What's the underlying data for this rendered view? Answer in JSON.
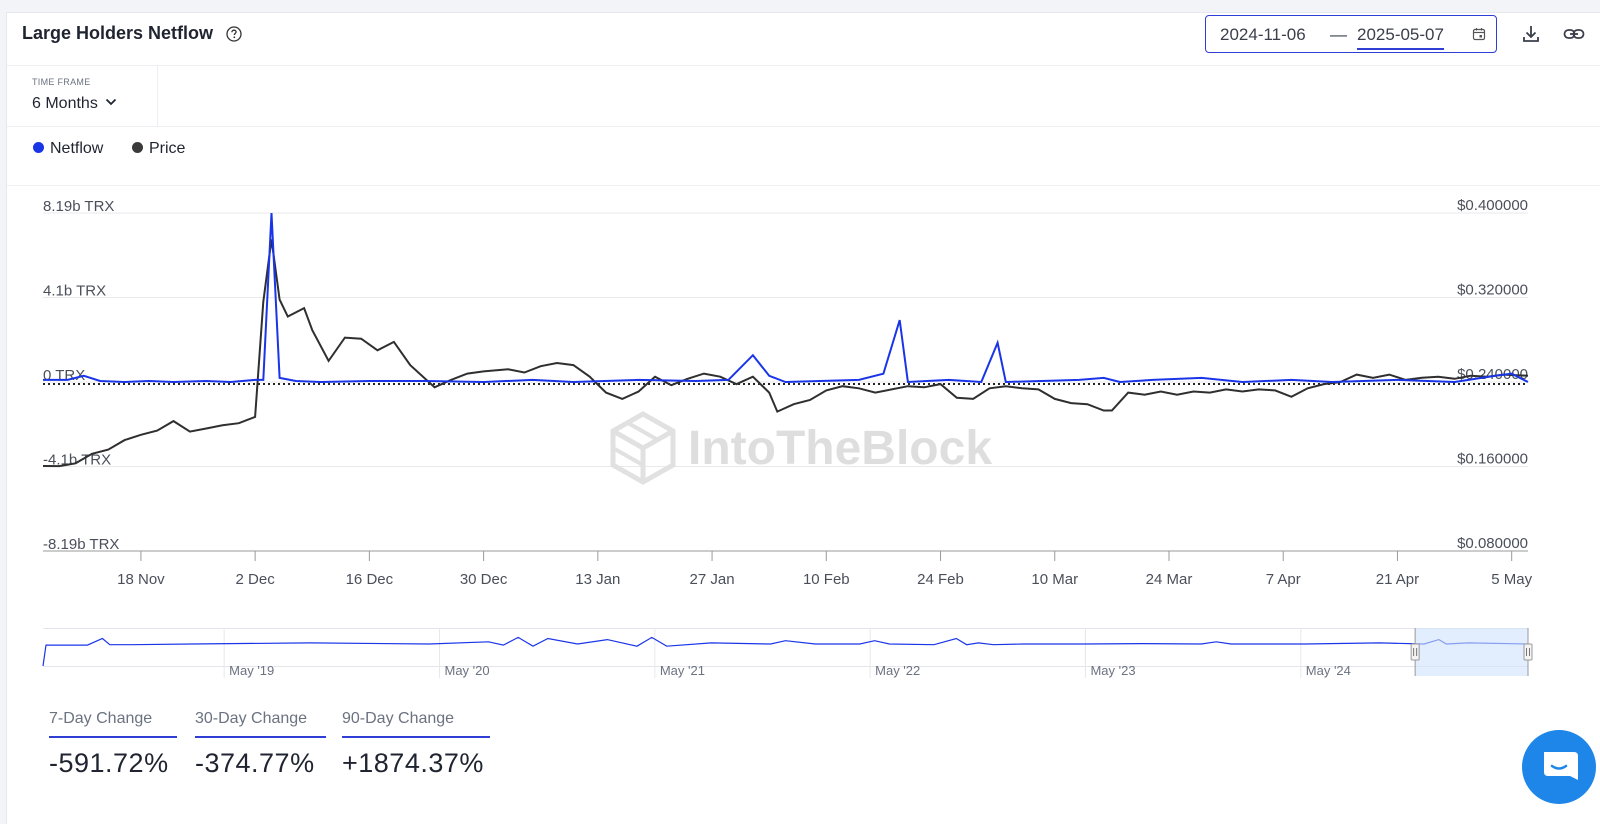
{
  "header": {
    "title": "Large Holders Netflow",
    "date_start": "2024-11-06",
    "date_separator": "—",
    "date_end": "2025-05-07"
  },
  "timeframe": {
    "label": "TIME FRAME",
    "value": "6 Months"
  },
  "legend": [
    {
      "label": "Netflow",
      "color": "#1a35e8"
    },
    {
      "label": "Price",
      "color": "#3a3a3a"
    }
  ],
  "watermark": "IntoTheBlock",
  "chart_data": {
    "type": "line",
    "title": "Large Holders Netflow",
    "x_dates": [
      "2024-11-06",
      "2025-05-07"
    ],
    "x_tick_labels": [
      "18 Nov",
      "2 Dec",
      "16 Dec",
      "30 Dec",
      "13 Jan",
      "27 Jan",
      "10 Feb",
      "24 Feb",
      "10 Mar",
      "24 Mar",
      "7 Apr",
      "21 Apr",
      "5 May"
    ],
    "y_left_tick_labels": [
      "8.19b TRX",
      "4.1b TRX",
      "0 TRX",
      "-4.1b TRX",
      "-8.19b TRX"
    ],
    "y_left_range": [
      -8.19,
      8.19
    ],
    "y_left_unit": "b TRX",
    "y_right_tick_labels": [
      "$0.400000",
      "$0.320000",
      "$0.240000",
      "$0.160000",
      "$0.080000"
    ],
    "y_right_range": [
      0.08,
      0.4
    ],
    "series": [
      {
        "name": "Netflow",
        "axis": "left",
        "points": [
          [
            "2024-11-06",
            0.1
          ],
          [
            "2024-11-09",
            0.1
          ],
          [
            "2024-11-11",
            0.3
          ],
          [
            "2024-11-13",
            0.05
          ],
          [
            "2024-11-16",
            0.0
          ],
          [
            "2024-11-19",
            0.05
          ],
          [
            "2024-11-22",
            0.0
          ],
          [
            "2024-11-26",
            0.05
          ],
          [
            "2024-11-29",
            0.0
          ],
          [
            "2024-12-02",
            0.1
          ],
          [
            "2024-12-03",
            0.1
          ],
          [
            "2024-12-04",
            8.19
          ],
          [
            "2024-12-05",
            0.2
          ],
          [
            "2024-12-07",
            0.05
          ],
          [
            "2024-12-10",
            0.0
          ],
          [
            "2024-12-16",
            0.05
          ],
          [
            "2024-12-23",
            0.05
          ],
          [
            "2024-12-30",
            0.0
          ],
          [
            "2025-01-05",
            0.1
          ],
          [
            "2025-01-10",
            0.0
          ],
          [
            "2025-01-18",
            0.1
          ],
          [
            "2025-01-25",
            0.05
          ],
          [
            "2025-01-29",
            0.1
          ],
          [
            "2025-02-01",
            1.3
          ],
          [
            "2025-02-03",
            0.3
          ],
          [
            "2025-02-05",
            0.0
          ],
          [
            "2025-02-14",
            0.1
          ],
          [
            "2025-02-17",
            0.4
          ],
          [
            "2025-02-19",
            3.0
          ],
          [
            "2025-02-20",
            0.0
          ],
          [
            "2025-02-25",
            0.1
          ],
          [
            "2025-03-01",
            0.0
          ],
          [
            "2025-03-03",
            1.9
          ],
          [
            "2025-03-04",
            0.0
          ],
          [
            "2025-03-13",
            0.1
          ],
          [
            "2025-03-16",
            0.2
          ],
          [
            "2025-03-18",
            0.0
          ],
          [
            "2025-03-22",
            0.1
          ],
          [
            "2025-03-28",
            0.2
          ],
          [
            "2025-04-02",
            0.0
          ],
          [
            "2025-04-08",
            0.1
          ],
          [
            "2025-04-13",
            0.0
          ],
          [
            "2025-04-21",
            0.1
          ],
          [
            "2025-04-28",
            0.0
          ],
          [
            "2025-05-03",
            0.3
          ],
          [
            "2025-05-05",
            0.4
          ],
          [
            "2025-05-07",
            0.0
          ]
        ]
      },
      {
        "name": "Price",
        "axis": "right",
        "points": [
          [
            "2024-11-06",
            0.1605
          ],
          [
            "2024-11-08",
            0.1604
          ],
          [
            "2024-11-10",
            0.163
          ],
          [
            "2024-11-12",
            0.172
          ],
          [
            "2024-11-14",
            0.176
          ],
          [
            "2024-11-16",
            0.185
          ],
          [
            "2024-11-18",
            0.19
          ],
          [
            "2024-11-20",
            0.194
          ],
          [
            "2024-11-22",
            0.203
          ],
          [
            "2024-11-24",
            0.193
          ],
          [
            "2024-11-26",
            0.196
          ],
          [
            "2024-11-28",
            0.199
          ],
          [
            "2024-11-30",
            0.201
          ],
          [
            "2024-12-02",
            0.207
          ],
          [
            "2024-12-03",
            0.316
          ],
          [
            "2024-12-04",
            0.375
          ],
          [
            "2024-12-05",
            0.318
          ],
          [
            "2024-12-06",
            0.302
          ],
          [
            "2024-12-08",
            0.31
          ],
          [
            "2024-12-09",
            0.289
          ],
          [
            "2024-12-11",
            0.26
          ],
          [
            "2024-12-13",
            0.282
          ],
          [
            "2024-12-15",
            0.281
          ],
          [
            "2024-12-17",
            0.27
          ],
          [
            "2024-12-19",
            0.278
          ],
          [
            "2024-12-21",
            0.256
          ],
          [
            "2024-12-24",
            0.235
          ],
          [
            "2024-12-26",
            0.242
          ],
          [
            "2024-12-28",
            0.248
          ],
          [
            "2024-12-30",
            0.25
          ],
          [
            "2025-01-02",
            0.252
          ],
          [
            "2025-01-04",
            0.249
          ],
          [
            "2025-01-06",
            0.255
          ],
          [
            "2025-01-08",
            0.258
          ],
          [
            "2025-01-10",
            0.256
          ],
          [
            "2025-01-12",
            0.245
          ],
          [
            "2025-01-14",
            0.23
          ],
          [
            "2025-01-16",
            0.224
          ],
          [
            "2025-01-18",
            0.231
          ],
          [
            "2025-01-20",
            0.245
          ],
          [
            "2025-01-22",
            0.237
          ],
          [
            "2025-01-24",
            0.243
          ],
          [
            "2025-01-26",
            0.248
          ],
          [
            "2025-01-28",
            0.245
          ],
          [
            "2025-01-30",
            0.238
          ],
          [
            "2025-02-01",
            0.245
          ],
          [
            "2025-02-03",
            0.23
          ],
          [
            "2025-02-04",
            0.212
          ],
          [
            "2025-02-06",
            0.219
          ],
          [
            "2025-02-08",
            0.223
          ],
          [
            "2025-02-10",
            0.232
          ],
          [
            "2025-02-12",
            0.236
          ],
          [
            "2025-02-14",
            0.234
          ],
          [
            "2025-02-16",
            0.23
          ],
          [
            "2025-02-18",
            0.233
          ],
          [
            "2025-02-20",
            0.236
          ],
          [
            "2025-02-22",
            0.235
          ],
          [
            "2025-02-24",
            0.238
          ],
          [
            "2025-02-26",
            0.225
          ],
          [
            "2025-02-28",
            0.224
          ],
          [
            "2025-03-02",
            0.234
          ],
          [
            "2025-03-04",
            0.236
          ],
          [
            "2025-03-06",
            0.234
          ],
          [
            "2025-03-08",
            0.233
          ],
          [
            "2025-03-10",
            0.224
          ],
          [
            "2025-03-12",
            0.22
          ],
          [
            "2025-03-14",
            0.219
          ],
          [
            "2025-03-16",
            0.213
          ],
          [
            "2025-03-17",
            0.213
          ],
          [
            "2025-03-19",
            0.23
          ],
          [
            "2025-03-21",
            0.228
          ],
          [
            "2025-03-23",
            0.231
          ],
          [
            "2025-03-25",
            0.228
          ],
          [
            "2025-03-27",
            0.231
          ],
          [
            "2025-03-29",
            0.23
          ],
          [
            "2025-03-31",
            0.233
          ],
          [
            "2025-04-02",
            0.231
          ],
          [
            "2025-04-04",
            0.233
          ],
          [
            "2025-04-06",
            0.232
          ],
          [
            "2025-04-08",
            0.226
          ],
          [
            "2025-04-10",
            0.234
          ],
          [
            "2025-04-12",
            0.238
          ],
          [
            "2025-04-14",
            0.24
          ],
          [
            "2025-04-16",
            0.247
          ],
          [
            "2025-04-18",
            0.244
          ],
          [
            "2025-04-20",
            0.247
          ],
          [
            "2025-04-22",
            0.242
          ],
          [
            "2025-04-24",
            0.244
          ],
          [
            "2025-04-26",
            0.245
          ],
          [
            "2025-04-28",
            0.243
          ],
          [
            "2025-04-30",
            0.246
          ],
          [
            "2025-05-02",
            0.245
          ],
          [
            "2025-05-04",
            0.247
          ],
          [
            "2025-05-07",
            0.246
          ]
        ]
      }
    ]
  },
  "navigator": {
    "labels": [
      "May '19",
      "May '20",
      "May '21",
      "May '22",
      "May '23",
      "May '24"
    ],
    "line_points": [
      [
        0.0,
        0.0
      ],
      [
        0.002,
        0.95
      ],
      [
        0.03,
        0.95
      ],
      [
        0.04,
        1.25
      ],
      [
        0.045,
        0.97
      ],
      [
        0.06,
        0.97
      ],
      [
        0.1,
        1.0
      ],
      [
        0.18,
        1.05
      ],
      [
        0.26,
        1.0
      ],
      [
        0.3,
        1.1
      ],
      [
        0.31,
        0.95
      ],
      [
        0.32,
        1.3
      ],
      [
        0.33,
        0.9
      ],
      [
        0.34,
        1.25
      ],
      [
        0.36,
        1.0
      ],
      [
        0.38,
        1.2
      ],
      [
        0.4,
        0.9
      ],
      [
        0.41,
        1.3
      ],
      [
        0.42,
        0.9
      ],
      [
        0.45,
        1.05
      ],
      [
        0.49,
        1.0
      ],
      [
        0.5,
        1.15
      ],
      [
        0.52,
        1.0
      ],
      [
        0.55,
        1.0
      ],
      [
        0.56,
        1.15
      ],
      [
        0.57,
        1.0
      ],
      [
        0.6,
        0.97
      ],
      [
        0.615,
        1.25
      ],
      [
        0.622,
        0.97
      ],
      [
        0.63,
        1.05
      ],
      [
        0.64,
        0.97
      ],
      [
        0.66,
        1.0
      ],
      [
        0.7,
        1.0
      ],
      [
        0.74,
        1.02
      ],
      [
        0.78,
        1.0
      ],
      [
        0.79,
        1.1
      ],
      [
        0.8,
        1.0
      ],
      [
        0.85,
        1.0
      ],
      [
        0.9,
        1.05
      ],
      [
        0.93,
        1.0
      ],
      [
        0.94,
        1.2
      ],
      [
        0.945,
        1.0
      ],
      [
        0.96,
        1.05
      ],
      [
        1.0,
        1.0
      ]
    ],
    "selected_fraction": [
      0.924,
      1.0
    ]
  },
  "stats": [
    {
      "label": "7-Day Change",
      "value": "-591.72%"
    },
    {
      "label": "30-Day Change",
      "value": "-374.77%"
    },
    {
      "label": "90-Day Change",
      "value": "+1874.37%"
    }
  ]
}
